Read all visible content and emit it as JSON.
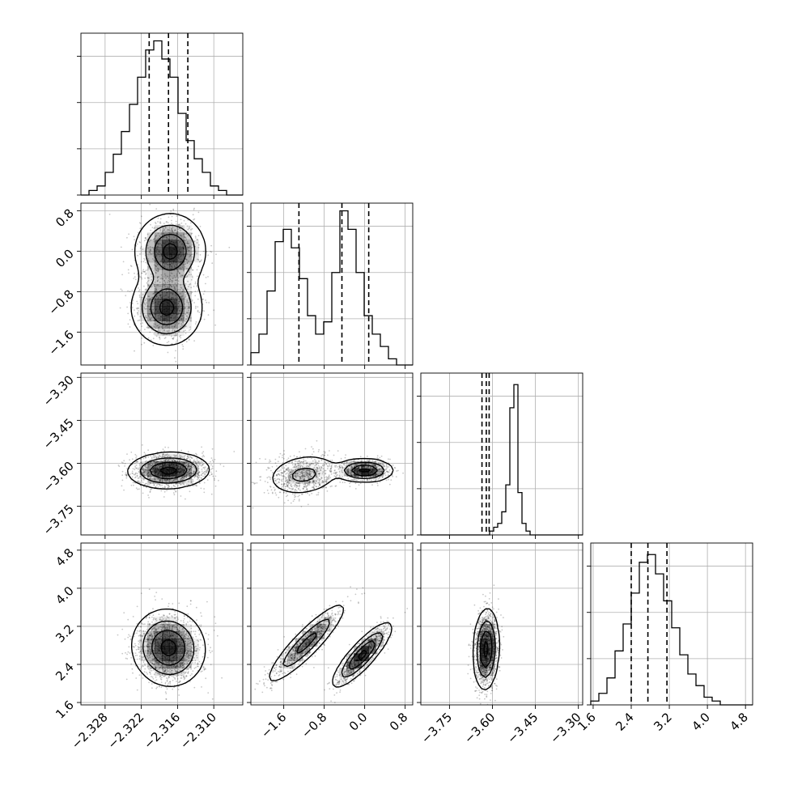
{
  "chart_data": {
    "type": "corner",
    "parameters": [
      {
        "range": [
          -2.332,
          -2.3052
        ],
        "ticks": [
          "−2.328",
          "−2.322",
          "−2.316",
          "−2.310"
        ],
        "tick_values": [
          -2.328,
          -2.322,
          -2.316,
          -2.31
        ],
        "quantiles": [
          -2.3207,
          -2.3175,
          -2.3143
        ]
      },
      {
        "range": [
          -2.25,
          0.95
        ],
        "ticks": [
          "−1.6",
          "−0.8",
          "0.0",
          "0.8"
        ],
        "tick_values": [
          -1.6,
          -0.8,
          0.0,
          0.8
        ],
        "quantiles": [
          -1.3,
          -0.45,
          0.08
        ]
      },
      {
        "range": [
          -3.85,
          -3.285
        ],
        "ticks": [
          "−3.75",
          "−3.60",
          "−3.45",
          "−3.30"
        ],
        "tick_values": [
          -3.75,
          -3.6,
          -3.45,
          -3.3
        ],
        "quantiles": [
          -3.6365,
          -3.6215,
          -3.6115
        ]
      },
      {
        "range": [
          1.55,
          4.95
        ],
        "ticks": [
          "1.6",
          "2.4",
          "3.2",
          "4.0",
          "4.8"
        ],
        "tick_values": [
          1.6,
          2.4,
          3.2,
          4.0,
          4.8
        ],
        "quantiles": [
          2.4,
          2.75,
          3.15
        ]
      }
    ],
    "histograms": [
      {
        "counts": [
          0,
          1,
          2,
          5,
          9,
          14,
          20,
          26,
          32,
          34,
          30,
          26,
          18,
          12,
          8,
          5,
          2,
          1,
          0,
          0
        ],
        "ymax": 34
      },
      {
        "counts": [
          2,
          5,
          12,
          20,
          22,
          19,
          14,
          8,
          5,
          7,
          15,
          25,
          22,
          15,
          8,
          5,
          3,
          1,
          0,
          0
        ],
        "ymax": 25
      },
      {
        "counts": [
          0,
          0,
          0,
          0,
          0,
          0,
          0,
          0,
          0,
          0,
          0,
          0,
          0,
          0,
          0,
          0,
          0,
          1,
          2,
          3,
          6,
          13,
          33,
          39,
          11,
          3,
          1,
          0,
          0,
          0,
          0,
          0,
          0,
          0,
          0,
          0,
          0,
          0,
          0,
          0
        ],
        "ymax": 40
      },
      {
        "counts": [
          1,
          3,
          7,
          14,
          21,
          29,
          37,
          39,
          34,
          27,
          20,
          13,
          8,
          5,
          2,
          1,
          0,
          0,
          0,
          0
        ],
        "ymax": 40
      }
    ],
    "scatter_panels": [
      {
        "row": 1,
        "col": 0,
        "components": [
          {
            "mx": -2.3172,
            "my": 0.0,
            "sx": 0.0026,
            "sy": 0.33,
            "rho": 0.0,
            "w": 0.5
          },
          {
            "mx": -2.3178,
            "my": -1.12,
            "sx": 0.0026,
            "sy": 0.33,
            "rho": 0.0,
            "w": 0.5
          }
        ]
      },
      {
        "row": 2,
        "col": 0,
        "components": [
          {
            "mx": -2.3175,
            "my": -3.625,
            "sx": 0.003,
            "sy": 0.028,
            "rho": 0.05,
            "w": 1.0
          }
        ]
      },
      {
        "row": 2,
        "col": 1,
        "components": [
          {
            "mx": -1.2,
            "my": -3.64,
            "sx": 0.35,
            "sy": 0.035,
            "rho": 0.2,
            "w": 0.5
          },
          {
            "mx": 0.0,
            "my": -3.625,
            "sx": 0.25,
            "sy": 0.018,
            "rho": 0.0,
            "w": 0.5
          }
        ]
      },
      {
        "row": 3,
        "col": 0,
        "components": [
          {
            "mx": -2.3175,
            "my": 2.75,
            "sx": 0.0027,
            "sy": 0.36,
            "rho": -0.05,
            "w": 1.0
          }
        ]
      },
      {
        "row": 3,
        "col": 1,
        "components": [
          {
            "mx": -1.15,
            "my": 2.85,
            "sx": 0.35,
            "sy": 0.38,
            "rho": 0.9,
            "w": 0.5
          },
          {
            "mx": -0.05,
            "my": 2.6,
            "sx": 0.26,
            "sy": 0.3,
            "rho": 0.85,
            "w": 0.5
          }
        ]
      },
      {
        "row": 3,
        "col": 2,
        "components": [
          {
            "mx": -3.622,
            "my": 2.72,
            "sx": 0.02,
            "sy": 0.38,
            "rho": 0.1,
            "w": 1.0
          }
        ]
      }
    ],
    "contour_levels": [
      0.9,
      0.6,
      0.3,
      0.08
    ],
    "grid": true,
    "title": "",
    "xlabel": "",
    "ylabel": ""
  }
}
